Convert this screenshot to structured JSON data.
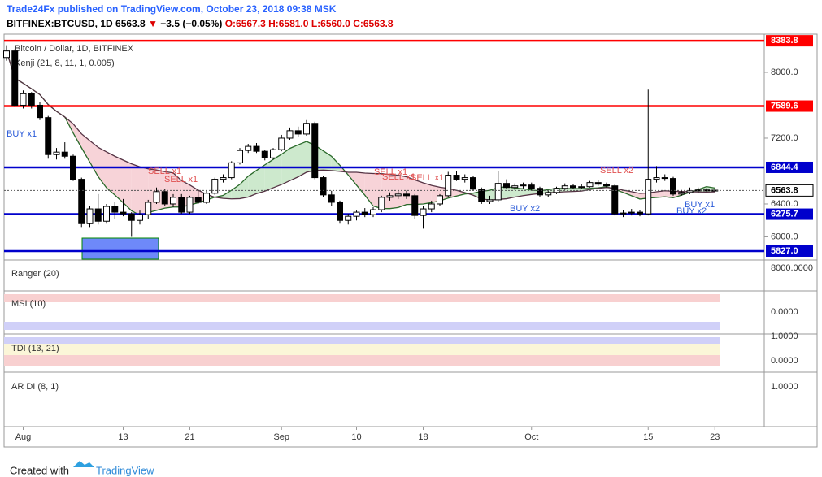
{
  "header": {
    "publisher": "Trade24Fx published on TradingView.com, October 23, 2018 09:38 MSK",
    "symbol": "BITFINEX:BTCUSD, 1D",
    "last": "6563.8",
    "arrow": "▼",
    "change": "−3.5 (−0.05%)",
    "open": "O:6567.3",
    "high": "H:6581.0",
    "low": "L:6560.0",
    "close": "C:6563.8"
  },
  "chart_data": {
    "type": "candlestick",
    "title": "Bitcoin / Dollar, 1D, BITFINEX",
    "subtitle": "Kenji (21, 8, 11, 1, 0.005)",
    "categories": [
      null,
      null,
      "Aug",
      null,
      null,
      null,
      null,
      null,
      null,
      null,
      null,
      null,
      null,
      null,
      "13",
      null,
      null,
      null,
      null,
      null,
      null,
      null,
      "21",
      null,
      null,
      null,
      null,
      null,
      null,
      null,
      null,
      null,
      null,
      "Sep",
      null,
      null,
      null,
      null,
      null,
      null,
      null,
      null,
      "10",
      null,
      null,
      null,
      null,
      null,
      null,
      null,
      "18",
      null,
      null,
      null,
      null,
      null,
      null,
      null,
      null,
      null,
      null,
      null,
      null,
      "Oct",
      null,
      null,
      null,
      null,
      null,
      null,
      null,
      null,
      null,
      null,
      null,
      null,
      null,
      "15",
      null,
      null,
      null,
      null,
      null,
      null,
      null,
      "23"
    ],
    "ohlc": [
      [
        8180,
        8330,
        8140,
        8260
      ],
      [
        8260,
        8280,
        7580,
        7600
      ],
      [
        7600,
        7780,
        7560,
        7740
      ],
      [
        7740,
        7760,
        7560,
        7600
      ],
      [
        7600,
        7640,
        7420,
        7450
      ],
      [
        7450,
        7470,
        6950,
        7000
      ],
      [
        7000,
        7080,
        6940,
        7030
      ],
      [
        7030,
        7150,
        6950,
        6980
      ],
      [
        6980,
        7000,
        6680,
        6700
      ],
      [
        6700,
        6720,
        6120,
        6160
      ],
      [
        6160,
        6380,
        6120,
        6340
      ],
      [
        6340,
        6520,
        6150,
        6190
      ],
      [
        6190,
        6400,
        6160,
        6370
      ],
      [
        6370,
        6420,
        6220,
        6300
      ],
      [
        6300,
        6460,
        6250,
        6280
      ],
      [
        6280,
        6300,
        6000,
        6200
      ],
      [
        6200,
        6320,
        6150,
        6270
      ],
      [
        6270,
        6450,
        6220,
        6420
      ],
      [
        6420,
        6600,
        6400,
        6550
      ],
      [
        6550,
        6580,
        6380,
        6400
      ],
      [
        6400,
        6520,
        6360,
        6480
      ],
      [
        6480,
        6520,
        6280,
        6300
      ],
      [
        6300,
        6500,
        6280,
        6480
      ],
      [
        6480,
        6560,
        6400,
        6420
      ],
      [
        6420,
        6560,
        6400,
        6530
      ],
      [
        6530,
        6720,
        6510,
        6700
      ],
      [
        6700,
        6760,
        6660,
        6720
      ],
      [
        6720,
        6920,
        6700,
        6900
      ],
      [
        6900,
        7080,
        6880,
        7050
      ],
      [
        7050,
        7130,
        7020,
        7100
      ],
      [
        7100,
        7140,
        7020,
        7040
      ],
      [
        7040,
        7060,
        6930,
        6960
      ],
      [
        6960,
        7080,
        6940,
        7060
      ],
      [
        7060,
        7240,
        7040,
        7200
      ],
      [
        7200,
        7330,
        7180,
        7290
      ],
      [
        7290,
        7340,
        7220,
        7250
      ],
      [
        7250,
        7420,
        7230,
        7380
      ],
      [
        7380,
        7400,
        6700,
        6720
      ],
      [
        6720,
        6740,
        6480,
        6510
      ],
      [
        6510,
        6560,
        6380,
        6420
      ],
      [
        6420,
        6440,
        6160,
        6200
      ],
      [
        6200,
        6280,
        6150,
        6250
      ],
      [
        6250,
        6320,
        6200,
        6300
      ],
      [
        6300,
        6350,
        6240,
        6270
      ],
      [
        6270,
        6360,
        6240,
        6330
      ],
      [
        6330,
        6500,
        6300,
        6480
      ],
      [
        6480,
        6540,
        6440,
        6500
      ],
      [
        6500,
        6560,
        6460,
        6520
      ],
      [
        6520,
        6560,
        6460,
        6500
      ],
      [
        6500,
        6520,
        6220,
        6260
      ],
      [
        6260,
        6380,
        6100,
        6340
      ],
      [
        6340,
        6440,
        6300,
        6400
      ],
      [
        6400,
        6520,
        6380,
        6500
      ],
      [
        6500,
        6790,
        6480,
        6750
      ],
      [
        6750,
        6800,
        6680,
        6700
      ],
      [
        6700,
        6760,
        6660,
        6720
      ],
      [
        6720,
        6740,
        6560,
        6580
      ],
      [
        6580,
        6600,
        6400,
        6430
      ],
      [
        6430,
        6500,
        6400,
        6450
      ],
      [
        6450,
        6800,
        6430,
        6650
      ],
      [
        6650,
        6700,
        6580,
        6600
      ],
      [
        6600,
        6650,
        6570,
        6620
      ],
      [
        6620,
        6660,
        6590,
        6630
      ],
      [
        6630,
        6660,
        6560,
        6590
      ],
      [
        6590,
        6610,
        6490,
        6510
      ],
      [
        6510,
        6560,
        6480,
        6540
      ],
      [
        6540,
        6610,
        6520,
        6590
      ],
      [
        6590,
        6650,
        6570,
        6620
      ],
      [
        6620,
        6640,
        6580,
        6600
      ],
      [
        6600,
        6640,
        6580,
        6610
      ],
      [
        6610,
        6680,
        6600,
        6660
      ],
      [
        6660,
        6690,
        6620,
        6640
      ],
      [
        6640,
        6660,
        6600,
        6620
      ],
      [
        6620,
        6640,
        6260,
        6280
      ],
      [
        6280,
        6330,
        6240,
        6290
      ],
      [
        6290,
        6340,
        6260,
        6300
      ],
      [
        6300,
        6330,
        6250,
        6280
      ],
      [
        6280,
        7790,
        6260,
        6700
      ],
      [
        6700,
        6860,
        6660,
        6720
      ],
      [
        6720,
        6760,
        6680,
        6710
      ],
      [
        6710,
        6730,
        6500,
        6520
      ],
      [
        6520,
        6570,
        6500,
        6540
      ],
      [
        6540,
        6600,
        6520,
        6560
      ],
      [
        6560,
        6600,
        6540,
        6570
      ],
      [
        6570,
        6590,
        6550,
        6567.3
      ],
      [
        6567.3,
        6581,
        6560,
        6563.8
      ]
    ],
    "ylim": [
      5738,
      8464
    ],
    "yticks": [
      {
        "value": 8000,
        "label": "8000.0"
      },
      {
        "value": 7200,
        "label": "7200.0"
      },
      {
        "value": 6400,
        "label": "6400.0"
      },
      {
        "value": 6000,
        "label": "6000.0"
      }
    ],
    "levels": [
      {
        "value": 8383.8,
        "color": "#ff0000"
      },
      {
        "value": 7589.6,
        "color": "#ff0000"
      },
      {
        "value": 6844.4,
        "color": "#0000cc"
      },
      {
        "value": 6275.7,
        "color": "#0000cc"
      },
      {
        "value": 5827,
        "label": "5827.0",
        "color": "#0000cc"
      }
    ],
    "last_price": 6563.8,
    "annotations": [
      "BUY x1",
      "SELL x1",
      "SELL x1",
      "SELL x1",
      "SELL x1",
      "SELL x1",
      "BUY x2",
      "SELL x2",
      "BUY x1",
      "BUY x2"
    ],
    "panes": [
      {
        "name": "Ranger (20)",
        "ticks": [
          "8000.0000"
        ]
      },
      {
        "name": "MSI (10)",
        "ticks": [
          "0.0000"
        ]
      },
      {
        "name": "TDI (13, 21)",
        "ticks": [
          "1.0000",
          "0.0000"
        ]
      },
      {
        "name": "AR DI (8, 1)",
        "ticks": [
          "1.0000"
        ]
      }
    ]
  },
  "footer": {
    "created": "Created with",
    "brand": "TradingView"
  }
}
